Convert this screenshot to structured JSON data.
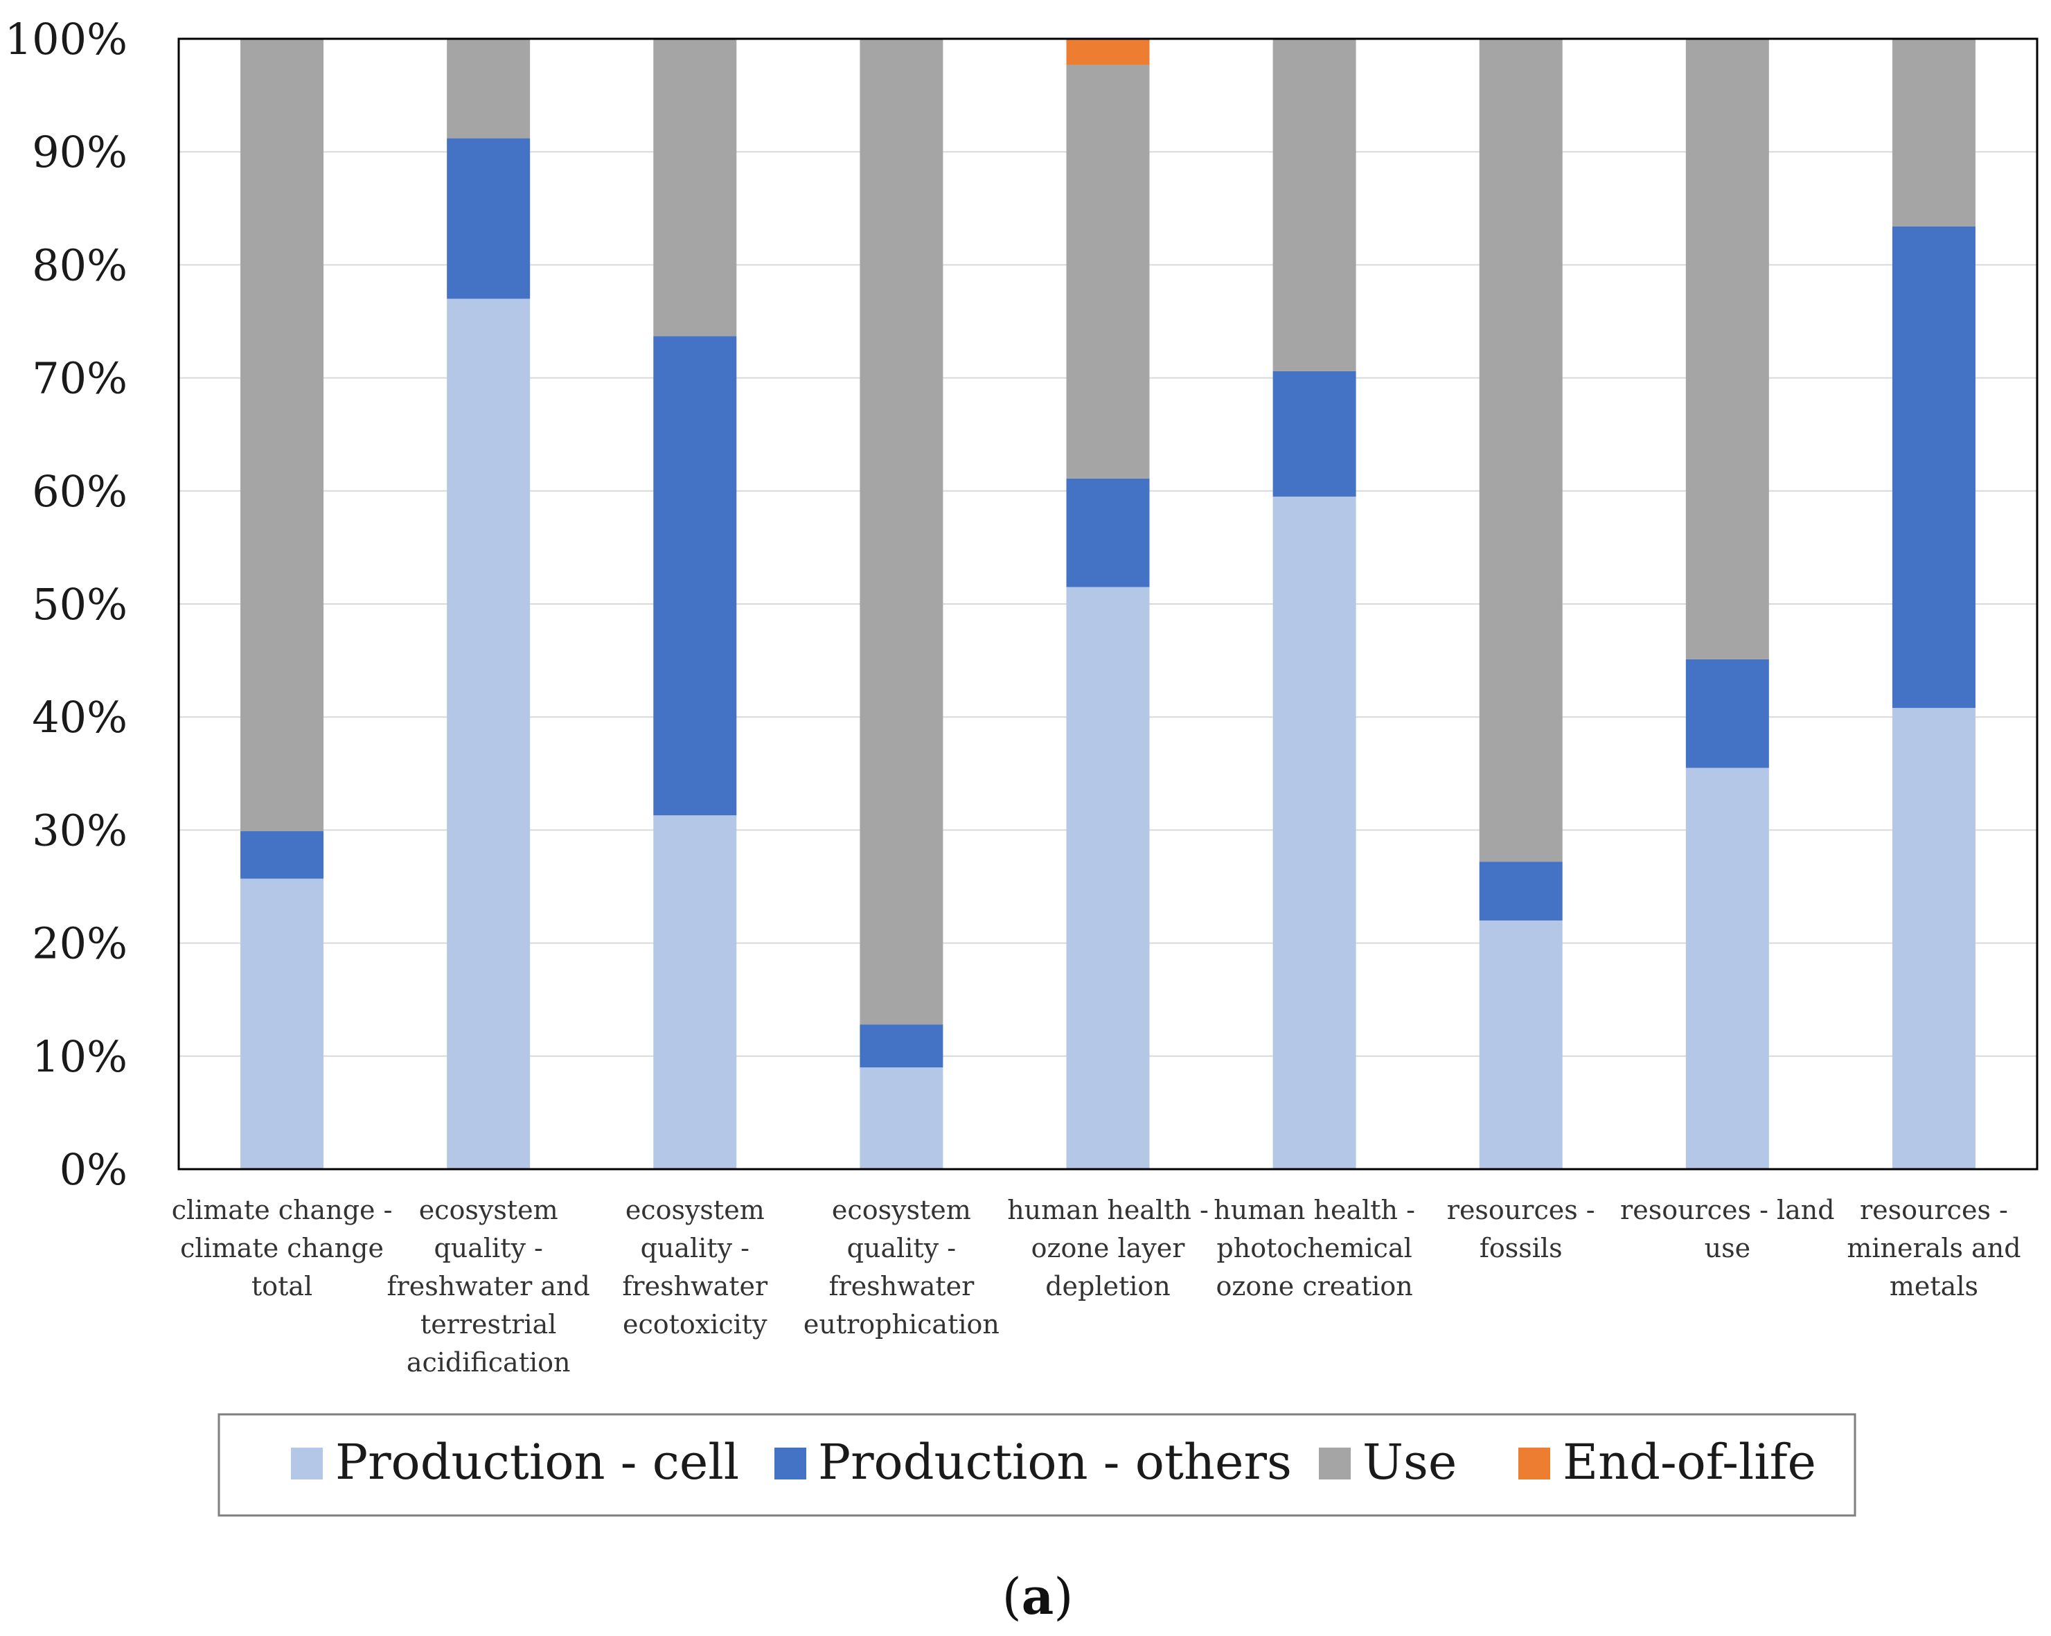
{
  "chart_data": {
    "type": "bar",
    "stacked": true,
    "normalized": true,
    "categories": [
      [
        "climate change -",
        "climate change",
        "total"
      ],
      [
        "ecosystem",
        "quality -",
        "freshwater and",
        "terrestrial",
        "acidification"
      ],
      [
        "ecosystem",
        "quality -",
        "freshwater",
        "ecotoxicity"
      ],
      [
        "ecosystem",
        "quality -",
        "freshwater",
        "eutrophication"
      ],
      [
        "human health -",
        "ozone layer",
        "depletion"
      ],
      [
        "human health -",
        "photochemical",
        "ozone creation"
      ],
      [
        "resources -",
        "fossils"
      ],
      [
        "resources - land",
        "use"
      ],
      [
        "resources -",
        "minerals and",
        "metals"
      ]
    ],
    "series": [
      {
        "name": "Production - cell",
        "color": "#b4c7e7",
        "values": [
          25.7,
          77.0,
          31.3,
          9.0,
          51.5,
          59.5,
          22.0,
          35.5,
          40.8
        ]
      },
      {
        "name": "Production - others",
        "color": "#4472c4",
        "values": [
          4.2,
          14.2,
          42.4,
          3.8,
          9.6,
          11.1,
          5.2,
          9.6,
          42.6
        ]
      },
      {
        "name": "Use",
        "color": "#a5a5a5",
        "values": [
          70.1,
          8.8,
          26.3,
          87.2,
          36.6,
          29.4,
          72.8,
          54.9,
          16.6
        ]
      },
      {
        "name": "End-of-life",
        "color": "#ed7d31",
        "values": [
          0,
          0,
          0,
          0,
          2.3,
          0,
          0,
          0,
          0
        ]
      }
    ],
    "ylim": [
      0,
      100
    ],
    "yticks": [
      "0%",
      "10%",
      "20%",
      "30%",
      "40%",
      "50%",
      "60%",
      "70%",
      "80%",
      "90%",
      "100%"
    ],
    "grid": true,
    "legend": "bottom"
  },
  "panel_label": {
    "open": "(",
    "letter": "a",
    "close": ")"
  }
}
